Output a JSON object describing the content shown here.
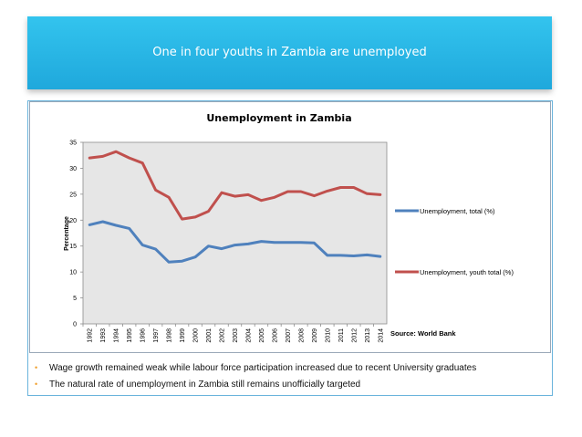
{
  "slide": {
    "title": "One in four youths in Zambia are unemployed",
    "source": "Source: World Bank",
    "bullets": [
      "Wage growth remained weak while labour force participation increased due to recent University graduates",
      "The natural rate of unemployment in Zambia still remains unofficially targeted"
    ],
    "bullet_color": "#f0a030"
  },
  "chart_data": {
    "type": "line",
    "title": "Unemployment in Zambia",
    "xlabel": "",
    "ylabel": "Percentage",
    "ylim": [
      0,
      35
    ],
    "yticks": [
      0,
      5,
      10,
      15,
      20,
      25,
      30,
      35
    ],
    "grid": false,
    "plot_background": "#e6e6e6",
    "legend_position": "right",
    "x": [
      "1992",
      "1993",
      "1994",
      "1995",
      "1996",
      "1997",
      "1998",
      "1999",
      "2000",
      "2001",
      "2002",
      "2003",
      "2004",
      "2005",
      "2006",
      "2007",
      "2008",
      "2009",
      "2010",
      "2011",
      "2012",
      "2013",
      "2014"
    ],
    "series": [
      {
        "name": "Unemployment, total (%)",
        "color": "#4f81bd",
        "values": [
          19.1,
          19.7,
          19.0,
          18.4,
          15.2,
          14.4,
          11.9,
          12.1,
          12.9,
          15.0,
          14.5,
          15.2,
          15.4,
          15.9,
          15.7,
          15.7,
          15.7,
          15.6,
          13.2,
          13.2,
          13.1,
          13.3,
          13.0
        ]
      },
      {
        "name": "Unemployment, youth total (%)",
        "color": "#c0504d",
        "values": [
          32.0,
          32.3,
          33.2,
          32.0,
          31.0,
          25.8,
          24.4,
          20.2,
          20.6,
          21.7,
          25.3,
          24.6,
          24.9,
          23.8,
          24.4,
          25.5,
          25.5,
          24.7,
          25.6,
          26.3,
          26.3,
          25.1,
          24.9
        ]
      }
    ]
  }
}
